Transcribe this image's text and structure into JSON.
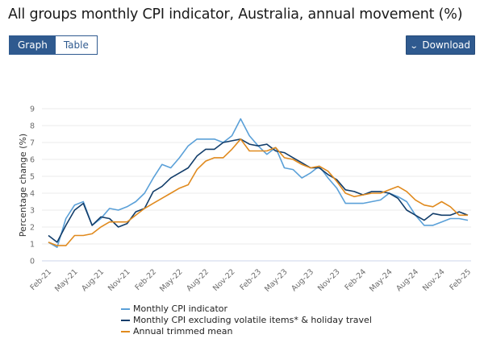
{
  "header": {
    "title": "All groups monthly CPI indicator, Australia, annual movement (%)",
    "view_toggle": [
      {
        "label": "Graph",
        "active": true
      },
      {
        "label": "Table",
        "active": false
      }
    ],
    "download_label": "Download",
    "download_icon": "chevron-down-icon"
  },
  "colors": {
    "monthly_cpi": "#5aa0d8",
    "excl_volatile": "#123d6a",
    "trimmed_mean": "#e08a1e",
    "accent": "#2f5a8f",
    "gridline": "#ebebeb",
    "axis": "#ccd6eb"
  },
  "chart_data": {
    "type": "line",
    "title": "All groups monthly CPI indicator, Australia, annual movement (%)",
    "xlabel": "",
    "ylabel": "Percentage change (%)",
    "ylim": [
      0,
      9
    ],
    "yticks": [
      0,
      1,
      2,
      3,
      4,
      5,
      6,
      7,
      8,
      9
    ],
    "grid": true,
    "legend_position": "bottom",
    "x": [
      "Feb-21",
      "Mar-21",
      "Apr-21",
      "May-21",
      "Jun-21",
      "Jul-21",
      "Aug-21",
      "Sep-21",
      "Oct-21",
      "Nov-21",
      "Dec-21",
      "Jan-22",
      "Feb-22",
      "Mar-22",
      "Apr-22",
      "May-22",
      "Jun-22",
      "Jul-22",
      "Aug-22",
      "Sep-22",
      "Oct-22",
      "Nov-22",
      "Dec-22",
      "Jan-23",
      "Feb-23",
      "Mar-23",
      "Apr-23",
      "May-23",
      "Jun-23",
      "Jul-23",
      "Aug-23",
      "Sep-23",
      "Oct-23",
      "Nov-23",
      "Dec-23",
      "Jan-24",
      "Feb-24",
      "Mar-24",
      "Apr-24",
      "May-24",
      "Jun-24",
      "Jul-24",
      "Aug-24",
      "Sep-24",
      "Oct-24",
      "Nov-24",
      "Dec-24",
      "Jan-25",
      "Feb-25"
    ],
    "xtick_labels": [
      "Feb-21",
      "May-21",
      "Aug-21",
      "Nov-21",
      "Feb-22",
      "May-22",
      "Aug-22",
      "Nov-22",
      "Feb-23",
      "May-23",
      "Aug-23",
      "Nov-23",
      "Feb-24",
      "May-24",
      "Aug-24",
      "Nov-24",
      "Feb-25"
    ],
    "series": [
      {
        "name": "Monthly CPI indicator",
        "color": "#5aa0d8",
        "values": [
          1.1,
          0.8,
          2.5,
          3.3,
          3.5,
          2.1,
          2.5,
          3.1,
          3.0,
          3.2,
          3.5,
          4.0,
          4.9,
          5.7,
          5.5,
          6.1,
          6.8,
          7.2,
          7.2,
          7.2,
          7.0,
          7.4,
          8.4,
          7.4,
          6.8,
          6.3,
          6.7,
          5.5,
          5.4,
          4.9,
          5.2,
          5.6,
          4.9,
          4.3,
          3.4,
          3.4,
          3.4,
          3.5,
          3.6,
          4.0,
          3.8,
          3.5,
          2.7,
          2.1,
          2.1,
          2.3,
          2.5,
          2.5,
          2.4
        ]
      },
      {
        "name": "Monthly CPI excluding volatile items* & holiday travel",
        "color": "#123d6a",
        "values": [
          1.5,
          1.1,
          2.1,
          3.0,
          3.4,
          2.1,
          2.6,
          2.5,
          2.0,
          2.2,
          2.9,
          3.1,
          4.1,
          4.4,
          4.9,
          5.2,
          5.5,
          6.2,
          6.6,
          6.6,
          7.0,
          7.1,
          7.2,
          6.9,
          6.8,
          6.9,
          6.5,
          6.4,
          6.1,
          5.8,
          5.5,
          5.5,
          5.1,
          4.8,
          4.2,
          4.1,
          3.9,
          4.1,
          4.1,
          4.0,
          3.7,
          3.0,
          2.7,
          2.4,
          2.8,
          2.7,
          2.7,
          2.9,
          2.7
        ]
      },
      {
        "name": "Annual trimmed mean",
        "color": "#e08a1e",
        "values": [
          1.1,
          0.9,
          0.9,
          1.5,
          1.5,
          1.6,
          2.0,
          2.3,
          2.3,
          2.3,
          2.7,
          3.1,
          3.4,
          3.7,
          4.0,
          4.3,
          4.5,
          5.4,
          5.9,
          6.1,
          6.1,
          6.6,
          7.2,
          6.5,
          6.5,
          6.5,
          6.7,
          6.1,
          6.0,
          5.7,
          5.5,
          5.6,
          5.3,
          4.7,
          4.0,
          3.8,
          3.9,
          4.0,
          4.0,
          4.2,
          4.4,
          4.1,
          3.6,
          3.3,
          3.2,
          3.5,
          3.2,
          2.7,
          2.7
        ]
      }
    ]
  }
}
